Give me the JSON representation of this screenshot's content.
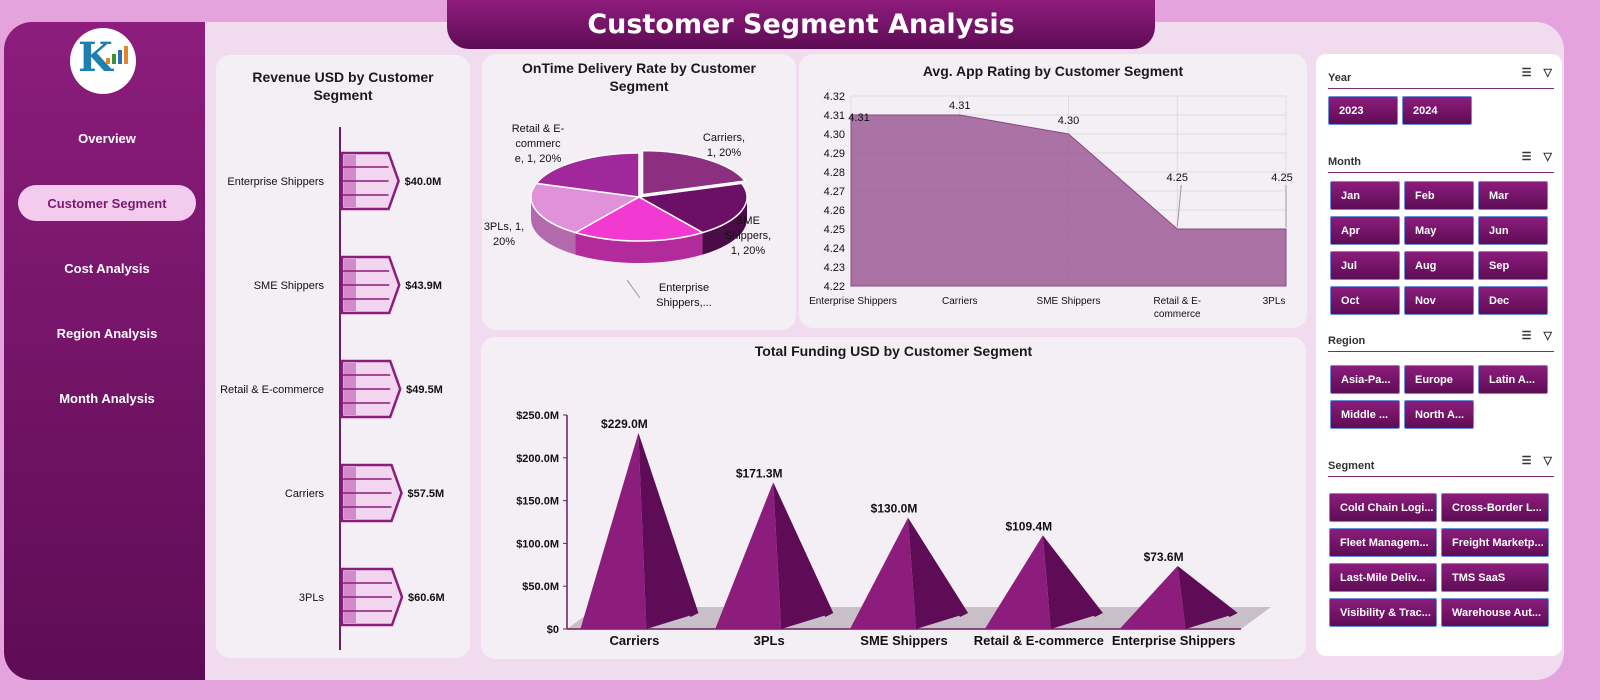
{
  "header": {
    "title": "Customer Segment Analysis"
  },
  "sidebar": {
    "items": [
      {
        "label": "Overview"
      },
      {
        "label": "Customer Segment"
      },
      {
        "label": "Cost Analysis"
      },
      {
        "label": "Region Analysis"
      },
      {
        "label": "Month Analysis"
      }
    ]
  },
  "colors": {
    "primary": "#7a1a6c",
    "accent": "#f3cbee",
    "background": "#e4a3dd"
  },
  "charts": {
    "revenue": {
      "title": "Revenue USD by  Customer Segment",
      "chart_data": {
        "type": "bar",
        "categories": [
          "Enterprise Shippers",
          "SME Shippers",
          "Retail & E-commerce",
          "Carriers",
          "3PLs"
        ],
        "values": [
          40.0,
          43.9,
          49.5,
          57.5,
          60.6
        ],
        "labels": [
          "$40.0M",
          "$43.9M",
          "$49.5M",
          "$57.5M",
          "$60.6M"
        ],
        "unit": "$M"
      }
    },
    "ontime": {
      "title": "OnTime Delivery Rate by  Customer Segment",
      "chart_data": {
        "type": "pie",
        "categories": [
          "Carriers",
          "SME Shippers",
          "Enterprise Shippers",
          "3PLs",
          "Retail & E-commerce"
        ],
        "values": [
          1,
          1,
          1,
          1,
          1
        ],
        "percent": [
          20,
          20,
          20,
          20,
          20
        ],
        "labels": [
          [
            "Carriers,",
            "1, 20%"
          ],
          [
            "SME",
            "Shippers,",
            "1, 20%"
          ],
          [
            "Enterprise",
            "Shippers,..."
          ],
          [
            "3PLs, 1,",
            "20%"
          ],
          [
            "Retail & E-",
            "commerc",
            "e, 1, 20%"
          ]
        ]
      }
    },
    "rating": {
      "title": "Avg. App Rating by  Customer Segment",
      "chart_data": {
        "type": "area",
        "categories": [
          "Enterprise Shippers",
          "Carriers",
          "SME Shippers",
          "Retail & E-commerce",
          "3PLs"
        ],
        "category_labels": [
          [
            "Enterprise Shippers"
          ],
          [
            "Carriers"
          ],
          [
            "SME Shippers"
          ],
          [
            "Retail & E-",
            "commerce"
          ],
          [
            "3PLs"
          ]
        ],
        "values": [
          4.31,
          4.31,
          4.3,
          4.25,
          4.25
        ],
        "labels": [
          "4.31",
          "4.31",
          "4.30",
          "4.25",
          "4.25"
        ],
        "ylim": [
          4.22,
          4.32
        ],
        "yticks": [
          "4.22",
          "4.23",
          "4.24",
          "4.25",
          "4.26",
          "4.27",
          "4.28",
          "4.29",
          "4.30",
          "4.31",
          "4.32"
        ]
      }
    },
    "funding": {
      "title": "Total Funding USD by  Customer Segment",
      "chart_data": {
        "type": "bar",
        "categories": [
          "Carriers",
          "3PLs",
          "SME Shippers",
          "Retail & E-commerce",
          "Enterprise Shippers"
        ],
        "values": [
          229.0,
          171.3,
          130.0,
          109.4,
          73.6
        ],
        "labels": [
          "$229.0M",
          "$171.3M",
          "$130.0M",
          "$109.4M",
          "$73.6M"
        ],
        "ylim": [
          0,
          250
        ],
        "yticks": [
          "$0",
          "$50.0M",
          "$100.0M",
          "$150.0M",
          "$200.0M",
          "$250.0M"
        ],
        "unit": "$M"
      }
    }
  },
  "slicers": {
    "year": {
      "label": "Year",
      "options": [
        "2023",
        "2024"
      ]
    },
    "month": {
      "label": "Month",
      "options": [
        "Jan",
        "Feb",
        "Mar",
        "Apr",
        "May",
        "Jun",
        "Jul",
        "Aug",
        "Sep",
        "Oct",
        "Nov",
        "Dec"
      ]
    },
    "region": {
      "label": "Region",
      "options": [
        "Asia-Pa...",
        "Europe",
        "Latin A...",
        "Middle ...",
        "North A..."
      ]
    },
    "segment": {
      "label": "Segment",
      "options": [
        "Cold Chain Logi...",
        "Cross-Border L...",
        "Fleet Managem...",
        "Freight Marketp...",
        "Last-Mile Deliv...",
        "TMS SaaS",
        "Visibility & Trac...",
        "Warehouse Aut..."
      ]
    }
  }
}
